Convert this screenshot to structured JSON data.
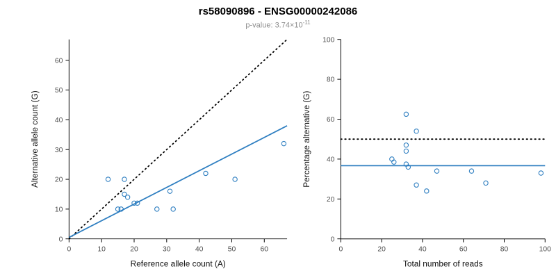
{
  "header": {
    "title": "rs58090896 - ENSG00000242086",
    "pvalue_prefix": "p-value: 3.74×10",
    "pvalue_exponent": "-11"
  },
  "colors": {
    "accent_blue": "#2f7fc1",
    "dotted_black": "#000000",
    "tick_text": "#4d4d4d",
    "axis_line": "#000000"
  },
  "chart_data": [
    {
      "type": "scatter",
      "title": "",
      "xlabel": "Reference allele count (A)",
      "ylabel": "Alternative allele count (G)",
      "xlim": [
        0,
        67
      ],
      "ylim": [
        0,
        67
      ],
      "xticks": [
        0,
        10,
        20,
        30,
        40,
        50,
        60
      ],
      "yticks": [
        0,
        10,
        20,
        30,
        40,
        50,
        60
      ],
      "grid": false,
      "legend": "none",
      "points": [
        [
          12,
          20
        ],
        [
          15,
          10
        ],
        [
          16,
          10
        ],
        [
          17,
          20
        ],
        [
          17,
          15
        ],
        [
          18,
          14
        ],
        [
          20,
          12
        ],
        [
          21,
          12
        ],
        [
          27,
          10
        ],
        [
          31,
          16
        ],
        [
          32,
          10
        ],
        [
          42,
          22
        ],
        [
          51,
          20
        ],
        [
          66,
          32
        ]
      ],
      "lines": [
        {
          "name": "identity-line",
          "style": "dotted",
          "color": "#000000",
          "from": [
            0,
            0
          ],
          "to": [
            67,
            67
          ]
        },
        {
          "name": "regression-line",
          "style": "solid",
          "color": "#2f7fc1",
          "from": [
            0,
            0.5
          ],
          "to": [
            67,
            38
          ]
        }
      ]
    },
    {
      "type": "scatter",
      "title": "",
      "xlabel": "Total number of reads",
      "ylabel": "Percentage alternative (G)",
      "xlim": [
        0,
        100
      ],
      "ylim": [
        0,
        100
      ],
      "xticks": [
        0,
        20,
        40,
        60,
        80,
        100
      ],
      "yticks": [
        0,
        20,
        40,
        60,
        80,
        100
      ],
      "grid": false,
      "legend": "none",
      "points": [
        [
          32,
          62.5
        ],
        [
          25,
          40
        ],
        [
          26,
          38.5
        ],
        [
          37,
          54
        ],
        [
          32,
          47
        ],
        [
          32,
          44
        ],
        [
          32,
          37.5
        ],
        [
          33,
          36
        ],
        [
          37,
          27
        ],
        [
          47,
          34
        ],
        [
          42,
          24
        ],
        [
          64,
          34
        ],
        [
          71,
          28
        ],
        [
          98,
          33
        ]
      ],
      "lines": [
        {
          "name": "fifty-percent-line",
          "style": "dotted",
          "color": "#000000",
          "from": [
            0,
            50
          ],
          "to": [
            100,
            50
          ]
        },
        {
          "name": "mean-percentage-line",
          "style": "solid",
          "color": "#2f7fc1",
          "from": [
            0,
            36.7
          ],
          "to": [
            100,
            36.7
          ]
        }
      ]
    }
  ]
}
